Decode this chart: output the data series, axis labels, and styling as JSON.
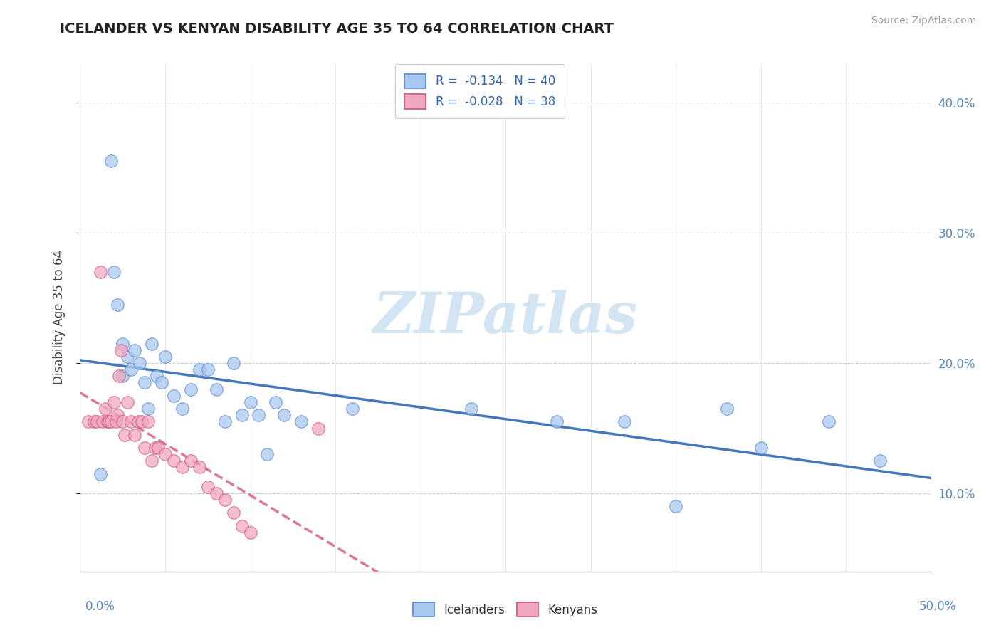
{
  "title": "ICELANDER VS KENYAN DISABILITY AGE 35 TO 64 CORRELATION CHART",
  "source": "Source: ZipAtlas.com",
  "ylabel": "Disability Age 35 to 64",
  "xlim": [
    0.0,
    0.5
  ],
  "ylim": [
    0.04,
    0.43
  ],
  "yticks": [
    0.1,
    0.2,
    0.3,
    0.4
  ],
  "ytick_labels": [
    "10.0%",
    "20.0%",
    "30.0%",
    "40.0%"
  ],
  "legend_r1": "R =  -0.134   N = 40",
  "legend_r2": "R =  -0.028   N = 38",
  "icelander_color": "#a8c8f0",
  "kenyan_color": "#f0a8c0",
  "icelander_edge_color": "#5588cc",
  "kenyan_edge_color": "#cc5577",
  "icelander_line_color": "#4477bb",
  "kenyan_line_color": "#dd7799",
  "watermark_color": "#cce0f0",
  "icelander_scatter_x": [
    0.012,
    0.018,
    0.02,
    0.022,
    0.025,
    0.025,
    0.028,
    0.03,
    0.032,
    0.035,
    0.038,
    0.04,
    0.042,
    0.045,
    0.048,
    0.05,
    0.055,
    0.06,
    0.065,
    0.07,
    0.075,
    0.08,
    0.085,
    0.09,
    0.095,
    0.1,
    0.105,
    0.11,
    0.115,
    0.12,
    0.13,
    0.16,
    0.23,
    0.28,
    0.32,
    0.35,
    0.38,
    0.4,
    0.44,
    0.47
  ],
  "icelander_scatter_y": [
    0.115,
    0.355,
    0.27,
    0.245,
    0.215,
    0.19,
    0.205,
    0.195,
    0.21,
    0.2,
    0.185,
    0.165,
    0.215,
    0.19,
    0.185,
    0.205,
    0.175,
    0.165,
    0.18,
    0.195,
    0.195,
    0.18,
    0.155,
    0.2,
    0.16,
    0.17,
    0.16,
    0.13,
    0.17,
    0.16,
    0.155,
    0.165,
    0.165,
    0.155,
    0.155,
    0.09,
    0.165,
    0.135,
    0.155,
    0.125
  ],
  "kenyan_scatter_x": [
    0.005,
    0.008,
    0.01,
    0.012,
    0.013,
    0.015,
    0.016,
    0.017,
    0.018,
    0.02,
    0.021,
    0.022,
    0.023,
    0.024,
    0.025,
    0.026,
    0.028,
    0.03,
    0.032,
    0.034,
    0.036,
    0.038,
    0.04,
    0.042,
    0.044,
    0.046,
    0.05,
    0.055,
    0.06,
    0.065,
    0.07,
    0.075,
    0.08,
    0.085,
    0.09,
    0.095,
    0.1,
    0.14
  ],
  "kenyan_scatter_y": [
    0.155,
    0.155,
    0.155,
    0.27,
    0.155,
    0.165,
    0.155,
    0.155,
    0.155,
    0.17,
    0.155,
    0.16,
    0.19,
    0.21,
    0.155,
    0.145,
    0.17,
    0.155,
    0.145,
    0.155,
    0.155,
    0.135,
    0.155,
    0.125,
    0.135,
    0.135,
    0.13,
    0.125,
    0.12,
    0.125,
    0.12,
    0.105,
    0.1,
    0.095,
    0.085,
    0.075,
    0.07,
    0.15
  ]
}
